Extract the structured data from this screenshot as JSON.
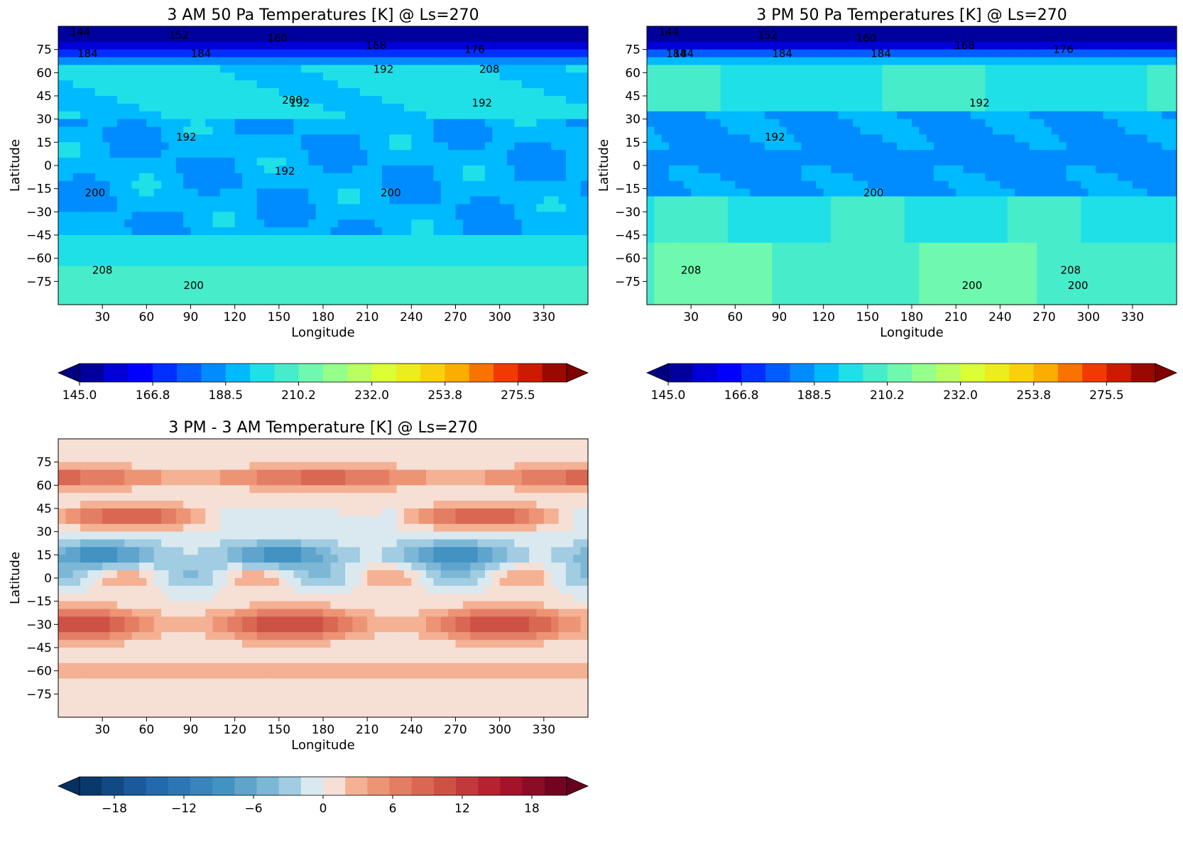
{
  "chart_data": [
    {
      "type": "contour",
      "title": "3 AM 50 Pa Temperatures [K] @ Ls=270",
      "xlabel": "Longitude",
      "ylabel": "Latitude",
      "xlim": [
        0,
        360
      ],
      "ylim": [
        -90,
        90
      ],
      "xticks": [
        "30",
        "60",
        "90",
        "120",
        "150",
        "180",
        "210",
        "240",
        "270",
        "300",
        "330"
      ],
      "yticks": [
        "75",
        "60",
        "45",
        "30",
        "15",
        "0",
        "−15",
        "−30",
        "−45",
        "−60",
        "−75"
      ],
      "contour_labels": [
        "144",
        "152",
        "160",
        "168",
        "176",
        "184",
        "192",
        "192",
        "192",
        "192",
        "200",
        "200",
        "200",
        "200",
        "208",
        "208",
        "184",
        "192"
      ],
      "colorbar": {
        "ticks": [
          "145.0",
          "166.8",
          "188.5",
          "210.2",
          "232.0",
          "253.8",
          "275.5"
        ],
        "range": [
          145.0,
          290.0
        ],
        "colormap": "jet",
        "extend": "both"
      },
      "field": {
        "description_level_K": {
          "north_pole": 150,
          "lat_75": 172,
          "lat_60": 192,
          "mid_north": 198,
          "equator_band": 190,
          "southern_mid": 200,
          "south_pole": 208
        }
      }
    },
    {
      "type": "contour",
      "title": "3 PM 50 Pa Temperatures [K] @ Ls=270",
      "xlabel": "Longitude",
      "ylabel": "Latitude",
      "xlim": [
        0,
        360
      ],
      "ylim": [
        -90,
        90
      ],
      "xticks": [
        "30",
        "60",
        "90",
        "120",
        "150",
        "180",
        "210",
        "240",
        "270",
        "300",
        "330"
      ],
      "yticks": [
        "75",
        "60",
        "45",
        "30",
        "15",
        "0",
        "−15",
        "−30",
        "−45",
        "−60",
        "−75"
      ],
      "contour_labels": [
        "144",
        "152",
        "160",
        "168",
        "176",
        "184",
        "192",
        "200",
        "200",
        "208",
        "184",
        "184",
        "184",
        "192",
        "200",
        "208"
      ],
      "colorbar": {
        "ticks": [
          "145.0",
          "166.8",
          "188.5",
          "210.2",
          "232.0",
          "253.8",
          "275.5"
        ],
        "range": [
          145.0,
          290.0
        ],
        "colormap": "jet",
        "extend": "both"
      },
      "field": {
        "description_level_K": {
          "north_pole": 150,
          "lat_75": 172,
          "lat_60": 196,
          "mid_north": 202,
          "equator_band": 188,
          "southern_mid": 204,
          "south_pole": 210
        }
      }
    },
    {
      "type": "contour",
      "title": "3 PM - 3 AM Temperature [K] @ Ls=270",
      "xlabel": "Longitude",
      "ylabel": "Latitude",
      "xlim": [
        0,
        360
      ],
      "ylim": [
        -90,
        90
      ],
      "xticks": [
        "30",
        "60",
        "90",
        "120",
        "150",
        "180",
        "210",
        "240",
        "270",
        "300",
        "330"
      ],
      "yticks": [
        "75",
        "60",
        "45",
        "30",
        "15",
        "0",
        "−15",
        "−30",
        "−45",
        "−60",
        "−75"
      ],
      "colorbar": {
        "ticks": [
          "−18",
          "−12",
          "−6",
          "0",
          "6",
          "12",
          "18"
        ],
        "range": [
          -21,
          21
        ],
        "colormap": "RdBu_r",
        "extend": "both"
      },
      "field": {
        "description_level_K": {
          "lat_65": 9,
          "lat_40": 10,
          "lat_15": -9,
          "equator": -4,
          "lat_minus30": 12,
          "lat_minus60": 4,
          "south_pole": 1
        }
      }
    }
  ]
}
